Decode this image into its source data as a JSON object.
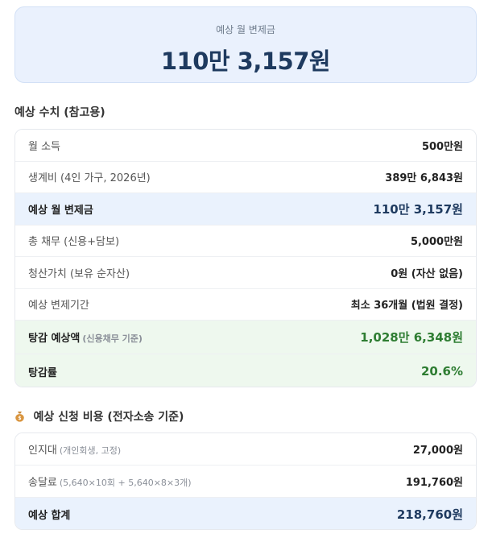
{
  "summary": {
    "label": "예상 월 변제금",
    "amount": "110만 3,157원"
  },
  "estimates": {
    "title": "예상 수치 (참고용)",
    "rows": [
      {
        "label": "월 소득",
        "sub": "",
        "value": "500만원"
      },
      {
        "label": "생계비 (4인 가구, 2026년)",
        "sub": "",
        "value": "389만 6,843원"
      },
      {
        "label": "예상 월 변제금",
        "sub": "",
        "value": "110만 3,157원"
      },
      {
        "label": "총 채무 (신용+담보)",
        "sub": "",
        "value": "5,000만원"
      },
      {
        "label": "청산가치 (보유 순자산)",
        "sub": "",
        "value": "0원 (자산 없음)"
      },
      {
        "label": "예상 변제기간",
        "sub": "",
        "value": "최소 36개월 (법원 결정)"
      },
      {
        "label": "탕감 예상액",
        "sub": "(신용채무 기준)",
        "value": "1,028만 6,348원"
      },
      {
        "label": "탕감률",
        "sub": "",
        "value": "20.6%"
      }
    ]
  },
  "costs": {
    "icon": "money-bag-icon",
    "title": "예상 신청 비용 (전자소송 기준)",
    "rows": [
      {
        "label": "인지대",
        "sub": "(개인회생, 고정)",
        "value": "27,000원"
      },
      {
        "label": "송달료",
        "sub": "(5,640×10회 + 5,640×8×3개)",
        "value": "191,760원"
      },
      {
        "label": "예상 합계",
        "sub": "",
        "value": "218,760원"
      }
    ]
  },
  "colors": {
    "highlight_blue": "#eaf2fd",
    "highlight_green": "#eef8ee",
    "amount_navy": "#1e3a5f",
    "amount_green": "#2e7d32"
  }
}
